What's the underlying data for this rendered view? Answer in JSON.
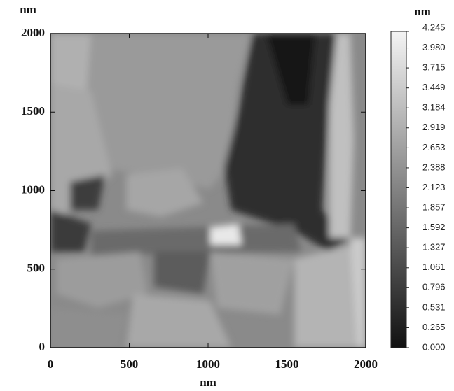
{
  "chart_data": {
    "type": "image",
    "x_label": "nm",
    "y_label": "nm",
    "colorbar_label": "nm",
    "xlim": [
      0,
      2000
    ],
    "ylim": [
      0,
      2000
    ],
    "xticks": [
      0,
      500,
      1000,
      1500,
      2000
    ],
    "yticks": [
      0,
      500,
      1000,
      1500,
      2000
    ],
    "clim": [
      0,
      4.245
    ],
    "cticks": [
      4.245,
      {
        "value": 3.98,
        "label": "3.980"
      },
      3.715,
      3.449,
      3.184,
      2.919,
      2.653,
      2.388,
      2.123,
      1.857,
      1.592,
      1.327,
      1.061,
      0.796,
      0.531,
      0.265,
      {
        "value": 0,
        "label": "0.000"
      }
    ],
    "colormap": [
      "#111111",
      "#f4f4f4"
    ]
  }
}
